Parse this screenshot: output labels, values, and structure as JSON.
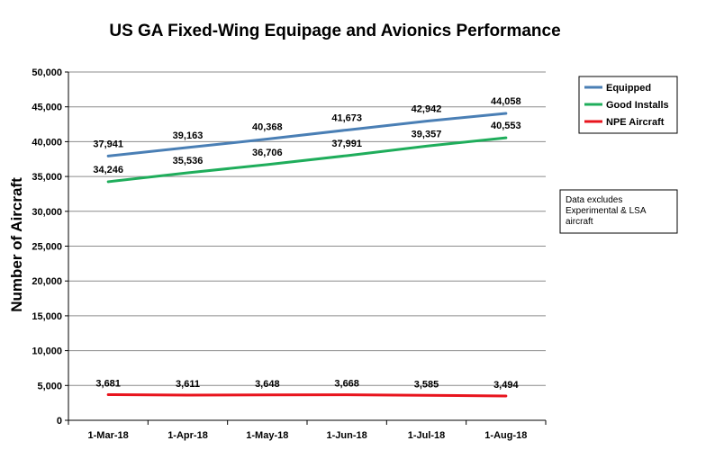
{
  "chart_data": {
    "type": "line",
    "title": "US GA Fixed-Wing Equipage and Avionics Performance",
    "ylabel": "Number of Aircraft",
    "xlabel": "",
    "categories": [
      "1-Mar-18",
      "1-Apr-18",
      "1-May-18",
      "1-Jun-18",
      "1-Jul-18",
      "1-Aug-18"
    ],
    "ylim": [
      0,
      50000
    ],
    "yticks": [
      0,
      5000,
      10000,
      15000,
      20000,
      25000,
      30000,
      35000,
      40000,
      45000,
      50000
    ],
    "ytick_labels": [
      "0",
      "5,000",
      "10,000",
      "15,000",
      "20,000",
      "25,000",
      "30,000",
      "35,000",
      "40,000",
      "45,000",
      "50,000"
    ],
    "grid": true,
    "legend_position": "top-right",
    "series": [
      {
        "name": "Equipped",
        "color": "#4a7fb5",
        "values": [
          37941,
          39163,
          40368,
          41673,
          42942,
          44058
        ],
        "labels": [
          "37,941",
          "39,163",
          "40,368",
          "41,673",
          "42,942",
          "44,058"
        ]
      },
      {
        "name": "Good Installs",
        "color": "#1fad5b",
        "values": [
          34246,
          35536,
          36706,
          37991,
          39357,
          40553
        ],
        "labels": [
          "34,246",
          "35,536",
          "36,706",
          "37,991",
          "39,357",
          "40,553"
        ]
      },
      {
        "name": "NPE Aircraft",
        "color": "#e8141d",
        "values": [
          3681,
          3611,
          3648,
          3668,
          3585,
          3494
        ],
        "labels": [
          "3,681",
          "3,611",
          "3,648",
          "3,668",
          "3,585",
          "3,494"
        ]
      }
    ],
    "annotation": [
      "Data excludes",
      "Experimental & LSA",
      "aircraft"
    ]
  }
}
